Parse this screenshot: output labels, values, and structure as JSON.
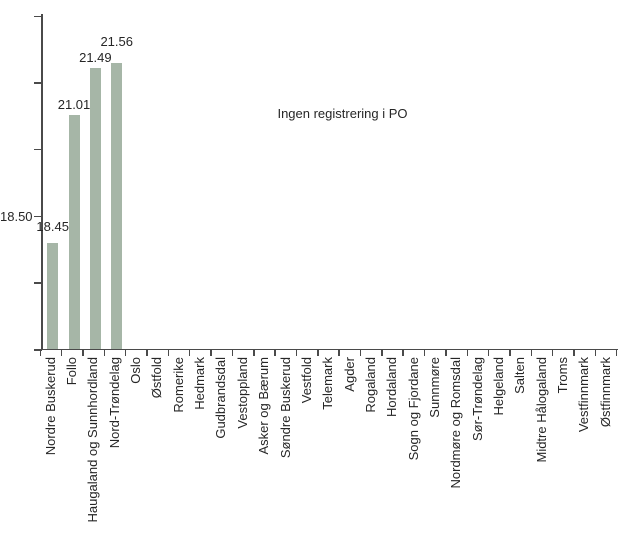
{
  "chart_data": {
    "type": "bar",
    "title": "",
    "annotation": "Ingen registrering i PO",
    "categories": [
      "Nordre Buskerud",
      "Follo",
      "Haugaland og Sunnhordland",
      "Nord-Trøndelag",
      "Oslo",
      "Østfold",
      "Romerike",
      "Hedmark",
      "Gudbrandsdal",
      "Vestoppland",
      "Asker og Bærum",
      "Søndre Buskerud",
      "Vestfold",
      "Telemark",
      "Agder",
      "Rogaland",
      "Hordaland",
      "Sogn og Fjordane",
      "Sunnmøre",
      "Nordmøre og Romsdal",
      "Sør-Trøndelag",
      "Helgeland",
      "Salten",
      "Midtre Hålogaland",
      "Troms",
      "Vestfinnmark",
      "Østfinnmark"
    ],
    "values": [
      18.45,
      21.01,
      21.49,
      21.56,
      null,
      null,
      null,
      null,
      null,
      null,
      null,
      null,
      null,
      null,
      null,
      null,
      null,
      null,
      null,
      null,
      null,
      null,
      null,
      null,
      null,
      null,
      null
    ],
    "bar_value_labels": [
      "18.45",
      "21.01",
      "21.49",
      "21.56"
    ],
    "y_axis": {
      "visible_tick_label": "18.50",
      "num_ticks": 6
    },
    "colors": {
      "bar": "#a6b6a7",
      "axis": "#4a4a4a",
      "text": "#262626",
      "background": "#ffffff"
    },
    "layout": {
      "grid": false,
      "legend": false,
      "x_label_rotation": 90,
      "bar_label_position": "above"
    }
  }
}
